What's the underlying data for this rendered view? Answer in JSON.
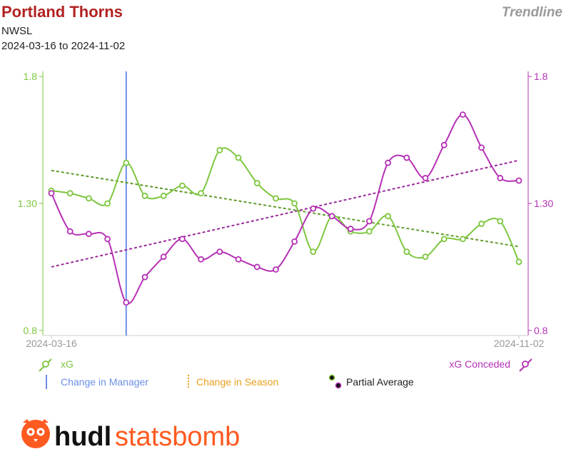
{
  "header": {
    "title": "Portland Thorns",
    "competition": "NWSL",
    "date_range": "2024-03-16 to 2024-11-02",
    "chart_type_label": "Trendline"
  },
  "logo": {
    "text_1": "hudl",
    "text_2": "statsbomb",
    "icon": "hudl-owl-icon"
  },
  "colors": {
    "xg": "#7dc63f",
    "xg_trend": "#5e9a2a",
    "xg_conceded": "#b530b5",
    "xg_conceded_trend": "#9a2a9a",
    "manager_change": "#6b8fe6",
    "season_change": "#e8a01e",
    "title": "#b22222",
    "logo_orange": "#ff5a1f"
  },
  "chart_data": {
    "type": "line",
    "x_start": "2024-03-16",
    "x_end": "2024-11-02",
    "ylim": [
      0.78,
      1.82
    ],
    "y_ticks": [
      "1.8",
      "1.30",
      "0.8"
    ],
    "y_tick_values": [
      1.8,
      1.3,
      0.8
    ],
    "x_tick_labels": [
      "2024-03-16",
      "2024-11-02"
    ],
    "grid": false,
    "series": [
      {
        "name": "xG",
        "axis": "left",
        "values": [
          1.35,
          1.34,
          1.32,
          1.3,
          1.46,
          1.33,
          1.33,
          1.37,
          1.34,
          1.51,
          1.48,
          1.38,
          1.32,
          1.3,
          1.11,
          1.25,
          1.19,
          1.19,
          1.25,
          1.11,
          1.09,
          1.16,
          1.16,
          1.22,
          1.23,
          1.07
        ]
      },
      {
        "name": "xG Conceded",
        "axis": "right",
        "values": [
          1.34,
          1.19,
          1.18,
          1.16,
          0.91,
          1.01,
          1.09,
          1.16,
          1.08,
          1.11,
          1.08,
          1.05,
          1.04,
          1.15,
          1.28,
          1.25,
          1.2,
          1.23,
          1.46,
          1.48,
          1.4,
          1.53,
          1.65,
          1.52,
          1.4,
          1.39
        ]
      }
    ],
    "trendlines": [
      {
        "series": "xG",
        "start": 1.43,
        "end": 1.13
      },
      {
        "series": "xG Conceded",
        "start": 1.05,
        "end": 1.47
      }
    ],
    "manager_change_index": 4,
    "legend": {
      "xg": "xG",
      "xg_conceded": "xG Conceded",
      "manager": "Change in Manager",
      "season": "Change in Season",
      "partial": "Partial Average"
    }
  }
}
